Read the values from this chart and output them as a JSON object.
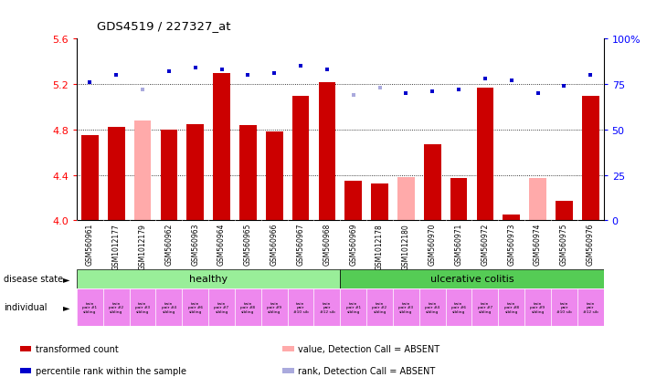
{
  "title": "GDS4519 / 227327_at",
  "samples": [
    "GSM560961",
    "GSM1012177",
    "GSM1012179",
    "GSM560962",
    "GSM560963",
    "GSM560964",
    "GSM560965",
    "GSM560966",
    "GSM560967",
    "GSM560968",
    "GSM560969",
    "GSM1012178",
    "GSM1012180",
    "GSM560970",
    "GSM560971",
    "GSM560972",
    "GSM560973",
    "GSM560974",
    "GSM560975",
    "GSM560976"
  ],
  "bar_values": [
    4.75,
    4.82,
    4.88,
    4.8,
    4.85,
    5.3,
    4.84,
    4.78,
    5.1,
    5.22,
    4.35,
    4.32,
    4.38,
    4.67,
    4.37,
    5.17,
    4.05,
    4.37,
    4.17,
    5.1
  ],
  "bar_absent": [
    false,
    false,
    true,
    false,
    false,
    false,
    false,
    false,
    false,
    false,
    false,
    false,
    true,
    false,
    false,
    false,
    false,
    true,
    false,
    false
  ],
  "rank_values": [
    76,
    80,
    72,
    82,
    84,
    83,
    80,
    81,
    85,
    83,
    69,
    73,
    70,
    71,
    72,
    78,
    77,
    70,
    74,
    80
  ],
  "rank_absent": [
    false,
    false,
    true,
    false,
    false,
    false,
    false,
    false,
    false,
    false,
    true,
    true,
    false,
    false,
    false,
    false,
    false,
    false,
    false,
    false
  ],
  "disease_state": [
    "healthy",
    "healthy",
    "healthy",
    "healthy",
    "healthy",
    "healthy",
    "healthy",
    "healthy",
    "healthy",
    "healthy",
    "ulcerative colitis",
    "ulcerative colitis",
    "ulcerative colitis",
    "ulcerative colitis",
    "ulcerative colitis",
    "ulcerative colitis",
    "ulcerative colitis",
    "ulcerative colitis",
    "ulcerative colitis",
    "ulcerative colitis"
  ],
  "individual_labels": [
    "twin\npair #1\nsibling",
    "twin\npair #2\nsibling",
    "twin\npair #3\nsibling",
    "twin\npair #4\nsibling",
    "twin\npair #6\nsibling",
    "twin\npair #7\nsibling",
    "twin\npair #8\nsibling",
    "twin\npair #9\nsibling",
    "twin\npair\n#10 sib",
    "twin\npair\n#12 sib",
    "twin\npair #1\nsibling",
    "twin\npair #2\nsibling",
    "twin\npair #3\nsibling",
    "twin\npair #4\nsibling",
    "twin\npair #6\nsibling",
    "twin\npair #7\nsibling",
    "twin\npair #8\nsibling",
    "twin\npair #9\nsibling",
    "twin\npair\n#10 sib",
    "twin\npair\n#12 sib"
  ],
  "ylim": [
    4.0,
    5.6
  ],
  "yticks": [
    4.0,
    4.4,
    4.8,
    5.2,
    5.6
  ],
  "right_yticks": [
    0,
    25,
    50,
    75,
    100
  ],
  "right_ytick_labels": [
    "0",
    "25",
    "50",
    "75",
    "100%"
  ],
  "grid_lines": [
    4.4,
    4.8,
    5.2
  ],
  "bar_color_present": "#cc0000",
  "bar_color_absent": "#ffaaaa",
  "rank_color_present": "#0000cc",
  "rank_color_absent": "#aaaadd",
  "healthy_color": "#99ee99",
  "uc_color": "#55cc55",
  "individual_color": "#ee88ee",
  "legend_items": [
    {
      "color": "#cc0000",
      "label": "transformed count"
    },
    {
      "color": "#0000cc",
      "label": "percentile rank within the sample"
    },
    {
      "color": "#ffaaaa",
      "label": "value, Detection Call = ABSENT"
    },
    {
      "color": "#aaaadd",
      "label": "rank, Detection Call = ABSENT"
    }
  ]
}
